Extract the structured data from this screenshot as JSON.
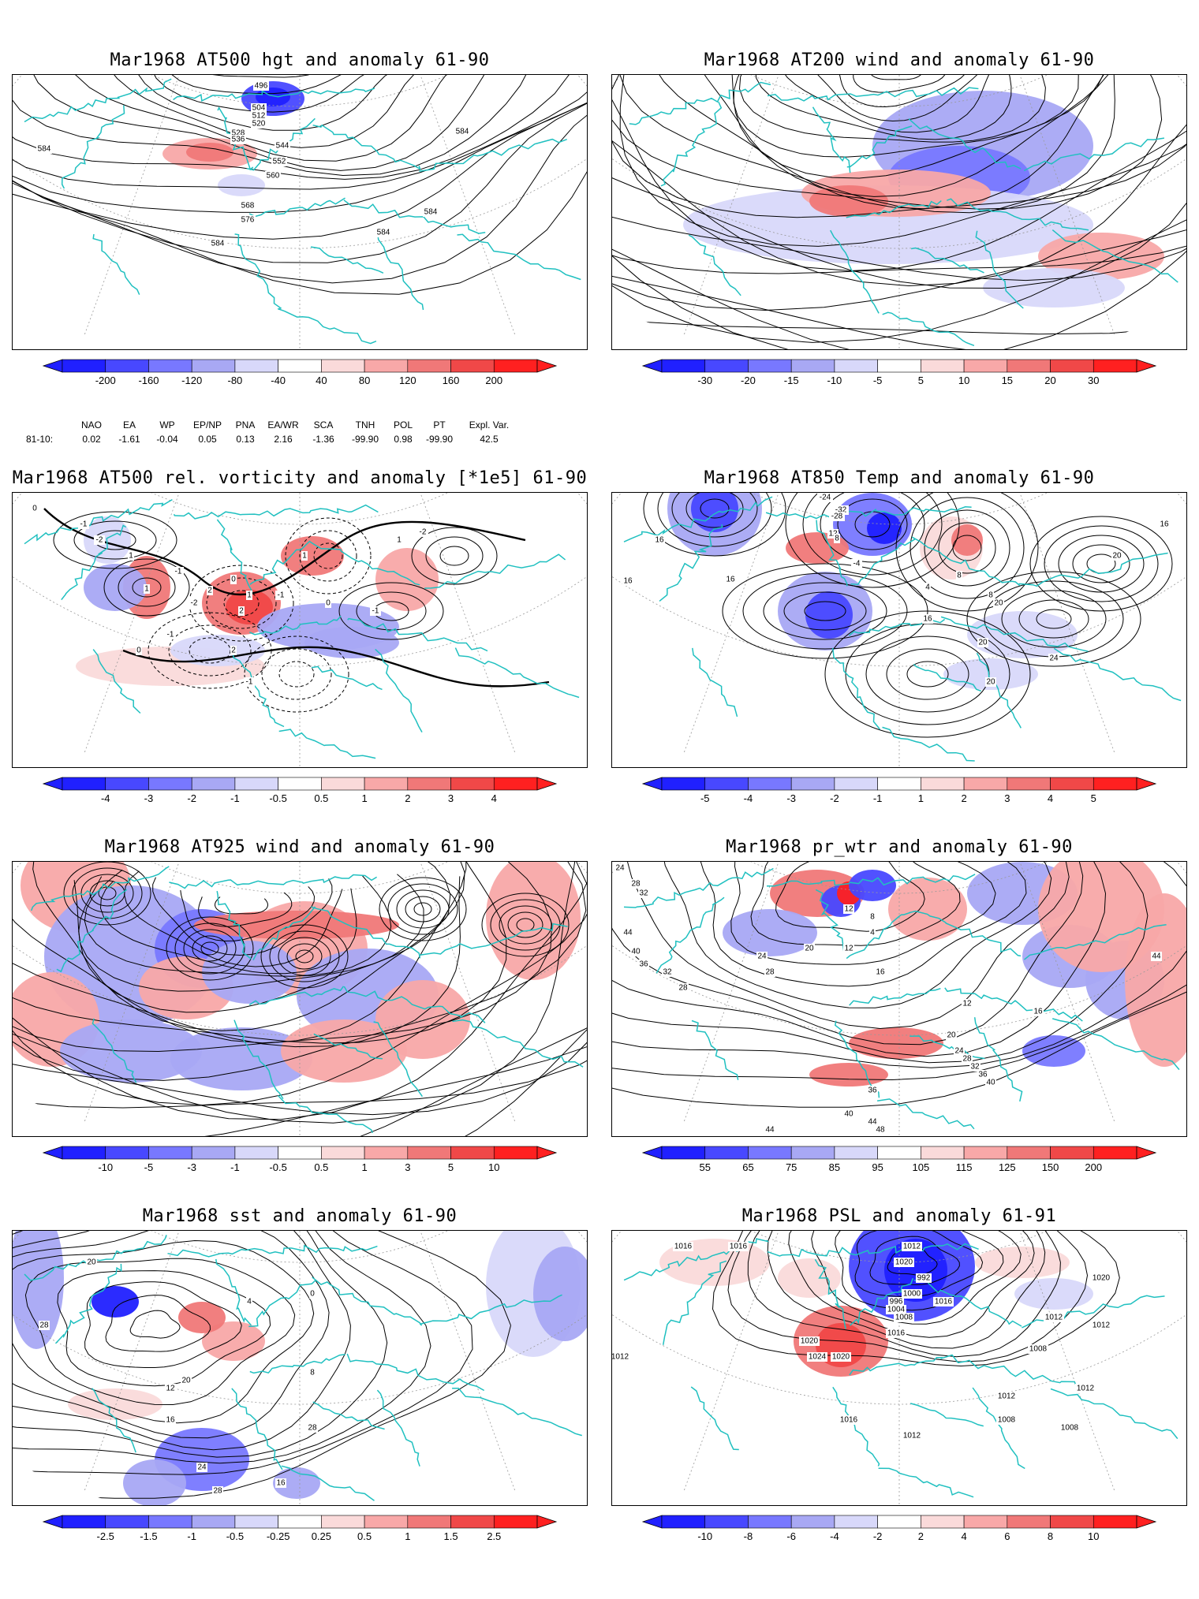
{
  "panels": [
    {
      "title": "Mar1968 AT500 hgt and anomaly 61-90",
      "colorbar": [
        "-200",
        "-160",
        "-120",
        "-80",
        "-40",
        "40",
        "80",
        "120",
        "160",
        "200"
      ],
      "contour_labels": [
        "496",
        "504",
        "512",
        "520",
        "528",
        "536",
        "544",
        "552",
        "560",
        "568",
        "576",
        "584",
        "584",
        "584",
        "584",
        "584"
      ]
    },
    {
      "title": "Mar1968 AT200 wind and anomaly 61-90",
      "colorbar": [
        "-30",
        "-20",
        "-15",
        "-10",
        "-5",
        "5",
        "10",
        "15",
        "20",
        "30"
      ],
      "contour_labels": []
    },
    {
      "title": "Mar1968 AT500 rel. vorticity and anomaly [*1e5] 61-90",
      "colorbar": [
        "-4",
        "-3",
        "-2",
        "-1",
        "-0.5",
        "0.5",
        "1",
        "2",
        "3",
        "4"
      ],
      "contour_labels": [
        "0",
        "-1",
        "-2",
        "1",
        "-1",
        "2",
        "0",
        "1",
        "-2",
        "2",
        "-1",
        "1",
        "0",
        "-1",
        "1",
        "-2",
        "1",
        "0",
        "-1",
        "2",
        "-1"
      ]
    },
    {
      "title": "Mar1968 AT850 Temp and anomaly 61-90",
      "colorbar": [
        "-5",
        "-4",
        "-3",
        "-2",
        "-1",
        "1",
        "2",
        "3",
        "4",
        "5"
      ],
      "contour_labels": [
        "-24",
        "-32",
        "-28",
        "12",
        "8",
        "16",
        "16",
        "16",
        "20",
        "16",
        "8",
        "16",
        "20",
        "24",
        "20",
        "20",
        "-4",
        "4",
        "8"
      ]
    },
    {
      "title": "Mar1968 AT925 wind and anomaly 61-90",
      "colorbar": [
        "-10",
        "-5",
        "-3",
        "-1",
        "-0.5",
        "0.5",
        "1",
        "3",
        "5",
        "10"
      ],
      "contour_labels": []
    },
    {
      "title": "Mar1968 pr_wtr and anomaly 61-90",
      "colorbar": [
        "55",
        "65",
        "75",
        "85",
        "95",
        "105",
        "115",
        "125",
        "150",
        "200"
      ],
      "contour_labels": [
        "24",
        "28",
        "32",
        "44",
        "40",
        "36",
        "32",
        "28",
        "20",
        "24",
        "28",
        "12",
        "16",
        "36",
        "40",
        "44",
        "48",
        "44",
        "16",
        "12",
        "8",
        "4",
        "20",
        "24",
        "28",
        "32",
        "36",
        "40",
        "44",
        "12"
      ]
    },
    {
      "title": "Mar1968 sst and anomaly 61-90",
      "colorbar": [
        "-2.5",
        "-1.5",
        "-1",
        "-0.5",
        "-0.25",
        "0.25",
        "0.5",
        "1",
        "1.5",
        "2.5"
      ],
      "contour_labels": [
        "28",
        "20",
        "12",
        "16",
        "20",
        "24",
        "28",
        "16",
        "28",
        "8",
        "4",
        "0"
      ]
    },
    {
      "title": "Mar1968 PSL and anomaly 61-91",
      "colorbar": [
        "-10",
        "-8",
        "-6",
        "-4",
        "-2",
        "2",
        "4",
        "6",
        "8",
        "10"
      ],
      "contour_labels": [
        "1016",
        "1016",
        "1012",
        "1020",
        "992",
        "1000",
        "996",
        "1004",
        "1008",
        "1016",
        "1020",
        "1024",
        "1020",
        "1012",
        "1016",
        "1012",
        "1008",
        "1012",
        "1016",
        "1012",
        "1008",
        "1012",
        "1008",
        "1012",
        "1020"
      ]
    }
  ],
  "indices": {
    "headers": [
      "NAO",
      "EA",
      "WP",
      "EP/NP",
      "PNA",
      "EA/WR",
      "SCA",
      "TNH",
      "POL",
      "PT",
      "Expl. Var."
    ],
    "row_label": "81-10:",
    "values": [
      "0.02",
      "-1.61",
      "-0.04",
      "0.05",
      "0.13",
      "2.16",
      "-1.36",
      "-99.90",
      "0.98",
      "-99.90",
      "42.5"
    ]
  },
  "colors": {
    "coast": "#20c0c0",
    "blue_scale": [
      "#2020ff",
      "#4848ff",
      "#7878ff",
      "#a8a8f4",
      "#d8d8fa"
    ],
    "red_scale": [
      "#fadada",
      "#f8a8a8",
      "#f07878",
      "#f04848",
      "#ff2020"
    ],
    "contour": "#000000",
    "grid": "#999999"
  }
}
